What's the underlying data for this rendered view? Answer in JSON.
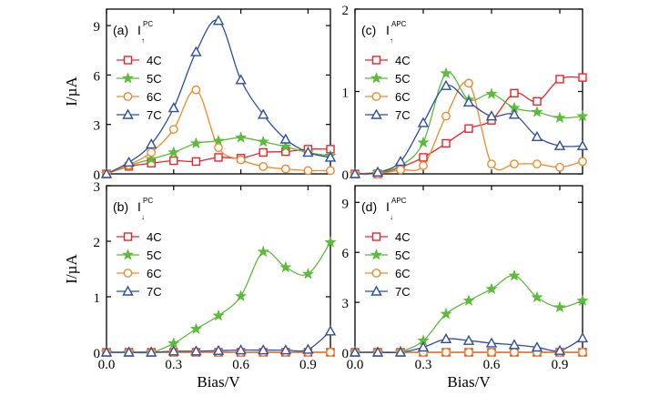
{
  "chart_data": [
    {
      "type": "line",
      "panel_label": "(a)",
      "quantity": {
        "symbol": "I",
        "superscript": "PC",
        "arrow": "↑"
      },
      "xlabel": "",
      "ylabel": "I/µA",
      "xlim": [
        0,
        1.0
      ],
      "ylim": [
        0,
        10
      ],
      "xticks": [
        0.0,
        0.3,
        0.6,
        0.9
      ],
      "xtick_labels": [
        "",
        "",
        "",
        ""
      ],
      "yticks": [
        0,
        3,
        6,
        9
      ],
      "ytick_labels": [
        "0",
        "3",
        "6",
        "9"
      ],
      "x": [
        0.0,
        0.1,
        0.2,
        0.3,
        0.4,
        0.5,
        0.6,
        0.7,
        0.8,
        0.9,
        1.0
      ],
      "legend_placement": "upper-left",
      "series": [
        {
          "name": "4C",
          "color": "#e8262a",
          "marker": "square",
          "values": [
            0.0,
            0.45,
            0.65,
            0.8,
            0.75,
            1.0,
            0.95,
            1.3,
            1.35,
            1.5,
            1.5
          ]
        },
        {
          "name": "5C",
          "color": "#5cbb39",
          "marker": "star",
          "values": [
            0.0,
            0.5,
            0.9,
            1.3,
            1.85,
            2.0,
            2.2,
            1.95,
            1.65,
            1.3,
            1.1
          ]
        },
        {
          "name": "6C",
          "color": "#f0892a",
          "marker": "circle",
          "values": [
            0.0,
            0.55,
            1.3,
            2.7,
            5.1,
            1.6,
            0.85,
            0.45,
            0.3,
            0.2,
            0.2
          ]
        },
        {
          "name": "7C",
          "color": "#2c4ea3",
          "marker": "triangle",
          "values": [
            0.0,
            0.7,
            1.8,
            4.0,
            7.4,
            9.3,
            5.7,
            3.6,
            2.1,
            1.3,
            1.0
          ]
        }
      ]
    },
    {
      "type": "line",
      "panel_label": "(c)",
      "quantity": {
        "symbol": "I",
        "superscript": "APC",
        "arrow": "↑"
      },
      "xlabel": "",
      "ylabel": "",
      "xlim": [
        0,
        1.0
      ],
      "ylim": [
        0,
        2.0
      ],
      "xticks": [
        0.0,
        0.3,
        0.6,
        0.9
      ],
      "xtick_labels": [
        "",
        "",
        "",
        ""
      ],
      "yticks": [
        0,
        1,
        2
      ],
      "ytick_labels": [
        "0",
        "1",
        "2"
      ],
      "x": [
        0.0,
        0.1,
        0.2,
        0.3,
        0.4,
        0.5,
        0.6,
        0.7,
        0.8,
        0.9,
        1.0
      ],
      "legend_placement": "upper-left",
      "series": [
        {
          "name": "4C",
          "color": "#e8262a",
          "marker": "square",
          "values": [
            0.0,
            0.0,
            0.08,
            0.2,
            0.37,
            0.55,
            0.65,
            0.98,
            0.88,
            1.15,
            1.17
          ]
        },
        {
          "name": "5C",
          "color": "#5cbb39",
          "marker": "star",
          "values": [
            0.0,
            0.02,
            0.1,
            0.38,
            1.22,
            0.9,
            0.97,
            0.8,
            0.75,
            0.68,
            0.7
          ]
        },
        {
          "name": "6C",
          "color": "#f0892a",
          "marker": "circle",
          "values": [
            0.0,
            0.0,
            0.05,
            0.1,
            0.7,
            1.1,
            0.12,
            0.12,
            0.12,
            0.08,
            0.15
          ]
        },
        {
          "name": "7C",
          "color": "#2c4ea3",
          "marker": "triangle",
          "values": [
            0.0,
            0.02,
            0.15,
            0.62,
            1.07,
            0.87,
            0.7,
            0.72,
            0.45,
            0.34,
            0.34
          ]
        }
      ]
    },
    {
      "type": "line",
      "panel_label": "(b)",
      "quantity": {
        "symbol": "I",
        "superscript": "PC",
        "arrow": "↓"
      },
      "xlabel": "Bias/V",
      "ylabel": "I/µA",
      "xlim": [
        0,
        1.0
      ],
      "ylim": [
        0,
        3.0
      ],
      "xticks": [
        0.0,
        0.3,
        0.6,
        0.9
      ],
      "xtick_labels": [
        "0.0",
        "0.3",
        "0.6",
        "0.9"
      ],
      "yticks": [
        0,
        1,
        2,
        3
      ],
      "ytick_labels": [
        "0",
        "1",
        "2",
        "3"
      ],
      "x": [
        0.0,
        0.1,
        0.2,
        0.3,
        0.4,
        0.5,
        0.6,
        0.7,
        0.8,
        0.9,
        1.0
      ],
      "legend_placement": "upper-left",
      "series": [
        {
          "name": "4C",
          "color": "#e8262a",
          "marker": "square",
          "values": [
            0.0,
            0.0,
            0.0,
            0.0,
            0.0,
            0.0,
            0.0,
            0.0,
            0.0,
            0.0,
            0.0
          ]
        },
        {
          "name": "5C",
          "color": "#5cbb39",
          "marker": "star",
          "values": [
            0.0,
            0.0,
            0.0,
            0.16,
            0.42,
            0.66,
            1.01,
            1.81,
            1.53,
            1.41,
            1.98
          ]
        },
        {
          "name": "6C",
          "color": "#f0892a",
          "marker": "circle",
          "values": [
            0.0,
            0.0,
            0.0,
            0.0,
            0.0,
            0.0,
            0.0,
            0.0,
            0.0,
            0.0,
            0.0
          ]
        },
        {
          "name": "7C",
          "color": "#2c4ea3",
          "marker": "triangle",
          "values": [
            0.0,
            0.0,
            0.0,
            0.02,
            0.02,
            0.03,
            0.04,
            0.04,
            0.04,
            0.05,
            0.38
          ]
        }
      ]
    },
    {
      "type": "line",
      "panel_label": "(d)",
      "quantity": {
        "symbol": "I",
        "superscript": "APC",
        "arrow": "↓"
      },
      "xlabel": "Bias/V",
      "ylabel": "",
      "xlim": [
        0,
        1.0
      ],
      "ylim": [
        0,
        10
      ],
      "xticks": [
        0.0,
        0.3,
        0.6,
        0.9
      ],
      "xtick_labels": [
        "0.0",
        "0.3",
        "0.6",
        "0.9"
      ],
      "yticks": [
        0,
        3,
        6,
        9
      ],
      "ytick_labels": [
        "0",
        "3",
        "6",
        "9"
      ],
      "x": [
        0.0,
        0.1,
        0.2,
        0.3,
        0.4,
        0.5,
        0.6,
        0.7,
        0.8,
        0.9,
        1.0
      ],
      "legend_placement": "upper-left",
      "series": [
        {
          "name": "4C",
          "color": "#e8262a",
          "marker": "square",
          "values": [
            0.0,
            0.0,
            0.0,
            0.0,
            0.0,
            0.0,
            0.0,
            0.0,
            0.0,
            0.0,
            0.0
          ]
        },
        {
          "name": "5C",
          "color": "#5cbb39",
          "marker": "star",
          "values": [
            0.0,
            0.0,
            0.05,
            0.7,
            2.3,
            3.1,
            3.8,
            4.6,
            3.3,
            2.7,
            3.1
          ]
        },
        {
          "name": "6C",
          "color": "#f0892a",
          "marker": "circle",
          "values": [
            0.0,
            0.0,
            0.0,
            0.0,
            0.0,
            0.0,
            0.0,
            0.0,
            0.0,
            0.0,
            0.0
          ]
        },
        {
          "name": "7C",
          "color": "#2c4ea3",
          "marker": "triangle",
          "values": [
            0.0,
            0.0,
            0.0,
            0.3,
            0.8,
            0.7,
            0.55,
            0.45,
            0.3,
            0.1,
            0.85
          ]
        }
      ]
    }
  ]
}
